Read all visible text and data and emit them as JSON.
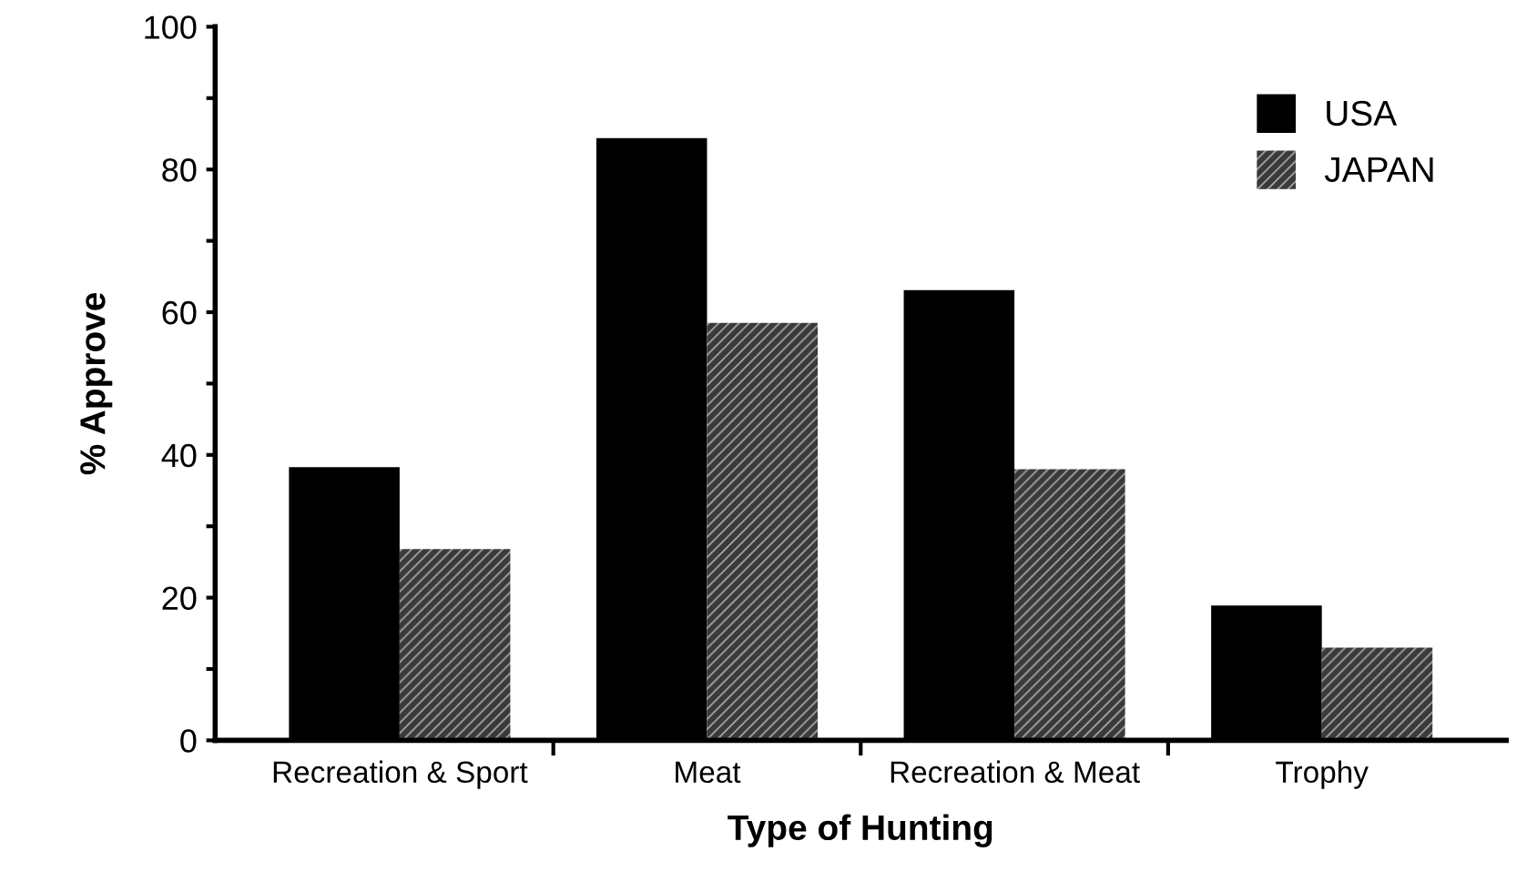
{
  "chart_data": {
    "type": "bar",
    "xlabel": "Type of Hunting",
    "ylabel": "% Approve",
    "categories": [
      "Recreation & Sport",
      "Meat",
      "Recreation & Meat",
      "Trophy"
    ],
    "series": [
      {
        "name": "USA",
        "color": "#000000",
        "values": [
          38.3,
          84.4,
          63.1,
          18.9
        ]
      },
      {
        "name": "JAPAN",
        "color": "#3a3a3a",
        "values": [
          26.8,
          58.5,
          38.0,
          13.0
        ]
      }
    ],
    "ylim": [
      0,
      100
    ],
    "yticks": [
      0,
      {
        "value": 10,
        "label": null
      },
      20,
      {
        "value": 30,
        "label": null
      },
      40,
      {
        "value": 50,
        "label": null
      },
      60,
      {
        "value": 70,
        "label": null
      },
      80,
      {
        "value": 90,
        "label": null
      },
      100
    ],
    "grid": false,
    "legend": "top right"
  }
}
